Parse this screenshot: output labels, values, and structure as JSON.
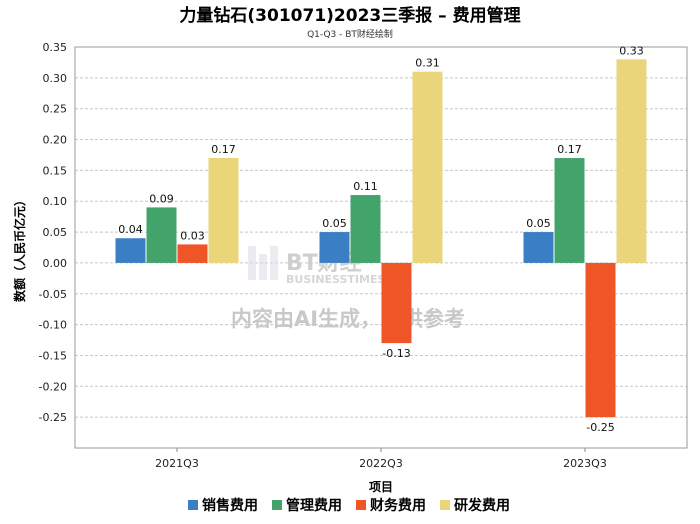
{
  "chart_data": {
    "type": "bar",
    "title": "力量钻石(301071)2023三季报 – 费用管理",
    "subtitle": "Q1-Q3 - BT财经绘制",
    "xlabel": "项目",
    "ylabel": "数额（人民币亿元）",
    "ylim": [
      -0.3,
      0.35
    ],
    "yticks": [
      0.35,
      0.3,
      0.25,
      0.2,
      0.15,
      0.1,
      0.05,
      0.0,
      -0.05,
      -0.1,
      -0.15,
      -0.2,
      -0.25
    ],
    "ytick_labels": [
      "0.35",
      "0.30",
      "0.25",
      "0.20",
      "0.15",
      "0.10",
      "0.05",
      "0.00",
      "-0.05",
      "-0.10",
      "-0.15",
      "-0.20",
      "-0.25"
    ],
    "categories": [
      "2021Q3",
      "2022Q3",
      "2023Q3"
    ],
    "series": [
      {
        "name": "销售费用",
        "color": "#3a7fc4",
        "values": [
          0.04,
          0.05,
          0.05
        ],
        "labels": [
          "0.04",
          "0.05",
          "0.05"
        ]
      },
      {
        "name": "管理费用",
        "color": "#43a46b",
        "values": [
          0.09,
          0.11,
          0.17
        ],
        "labels": [
          "0.09",
          "0.11",
          "0.17"
        ]
      },
      {
        "name": "财务费用",
        "color": "#ef5526",
        "values": [
          0.03,
          -0.13,
          -0.25
        ],
        "labels": [
          "0.03",
          "-0.13",
          "-0.25"
        ]
      },
      {
        "name": "研发费用",
        "color": "#ead57a",
        "values": [
          0.17,
          0.31,
          0.33
        ],
        "labels": [
          "0.17",
          "0.31",
          "0.33"
        ]
      }
    ],
    "grid": true,
    "legend": "bottom"
  },
  "watermark": {
    "brand": "BT财经",
    "brand_sub": "BUSINESSTIMES",
    "notice": "内容由AI生成，仅供参考"
  }
}
